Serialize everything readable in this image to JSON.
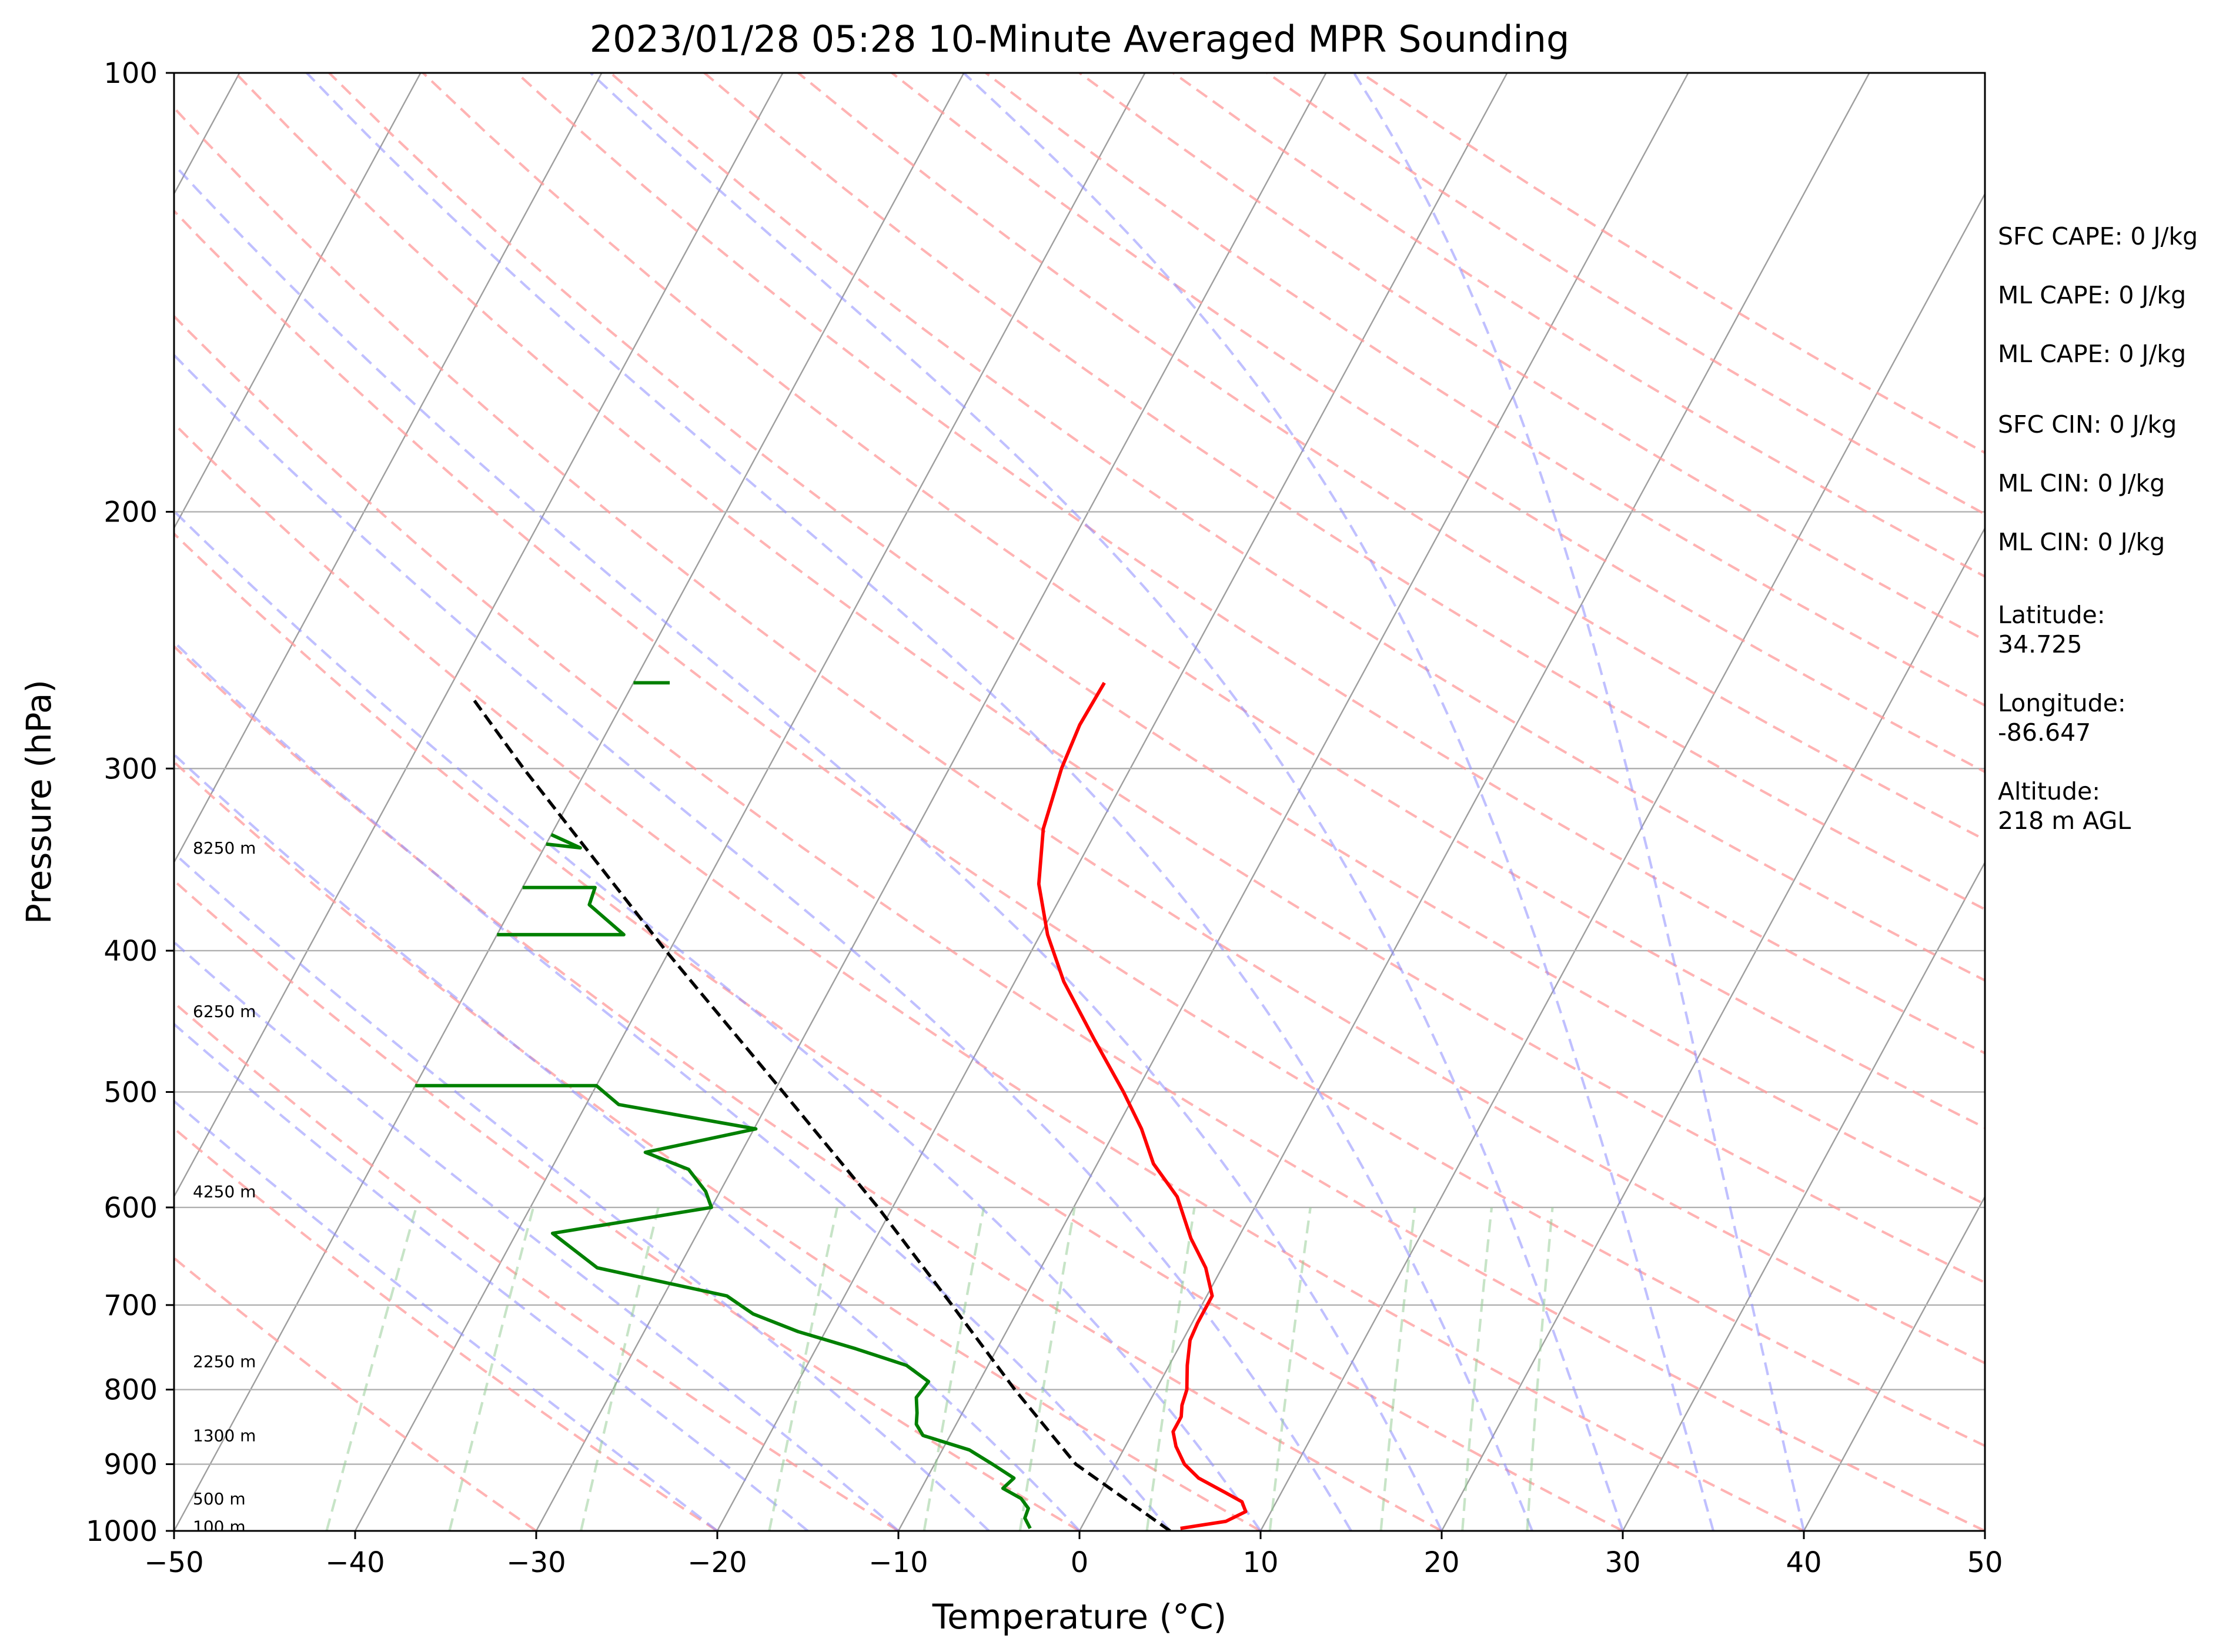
{
  "chart_data": {
    "type": "line",
    "title": "2023/01/28 05:28 10-Minute Averaged MPR Sounding",
    "xlabel": "Temperature (°C)",
    "ylabel": "Pressure (hPa)",
    "xlim": [
      -50,
      50
    ],
    "ylim": [
      1000,
      100
    ],
    "y_scale": "log",
    "grid": true,
    "x_ticks": [
      "−50",
      "−40",
      "−30",
      "−20",
      "−10",
      "0",
      "10",
      "20",
      "30",
      "40",
      "50"
    ],
    "y_ticks": [
      "100",
      "200",
      "300",
      "400",
      "500",
      "600",
      "700",
      "800",
      "900",
      "1000"
    ],
    "series": [
      {
        "role": "temperature",
        "color": "#ff0000",
        "points": [
          {
            "p": 996,
            "t": 5.5
          },
          {
            "p": 985,
            "t": 7.8
          },
          {
            "p": 970,
            "t": 8.6
          },
          {
            "p": 955,
            "t": 8.1
          },
          {
            "p": 940,
            "t": 6.8
          },
          {
            "p": 920,
            "t": 5.0
          },
          {
            "p": 900,
            "t": 3.8
          },
          {
            "p": 875,
            "t": 2.8
          },
          {
            "p": 855,
            "t": 2.2
          },
          {
            "p": 835,
            "t": 2.2
          },
          {
            "p": 820,
            "t": 1.9
          },
          {
            "p": 800,
            "t": 1.7
          },
          {
            "p": 770,
            "t": 1.0
          },
          {
            "p": 740,
            "t": 0.4
          },
          {
            "p": 720,
            "t": 0.3
          },
          {
            "p": 690,
            "t": 0.3
          },
          {
            "p": 660,
            "t": -0.9
          },
          {
            "p": 630,
            "t": -2.6
          },
          {
            "p": 590,
            "t": -4.6
          },
          {
            "p": 560,
            "t": -6.9
          },
          {
            "p": 530,
            "t": -8.6
          },
          {
            "p": 500,
            "t": -10.7
          },
          {
            "p": 460,
            "t": -13.9
          },
          {
            "p": 420,
            "t": -17.3
          },
          {
            "p": 390,
            "t": -19.6
          },
          {
            "p": 360,
            "t": -21.6
          },
          {
            "p": 330,
            "t": -23.0
          },
          {
            "p": 300,
            "t": -23.8
          },
          {
            "p": 280,
            "t": -24.1
          },
          {
            "p": 262,
            "t": -24.0
          }
        ]
      },
      {
        "role": "dewpoint",
        "color": "#008000",
        "points": [
          {
            "p": 996,
            "t": -2.8
          },
          {
            "p": 980,
            "t": -3.4
          },
          {
            "p": 965,
            "t": -3.5
          },
          {
            "p": 950,
            "t": -4.2
          },
          {
            "p": 935,
            "t": -5.5
          },
          {
            "p": 920,
            "t": -5.2
          },
          {
            "p": 900,
            "t": -6.8
          },
          {
            "p": 880,
            "t": -8.5
          },
          {
            "p": 860,
            "t": -11.5
          },
          {
            "p": 845,
            "t": -12.2
          },
          {
            "p": 830,
            "t": -12.5
          },
          {
            "p": 810,
            "t": -13.0
          },
          {
            "p": 790,
            "t": -12.8
          },
          {
            "p": 770,
            "t": -14.5
          },
          {
            "p": 750,
            "t": -17.8
          },
          {
            "p": 730,
            "t": -21.5
          },
          {
            "p": 710,
            "t": -24.5
          },
          {
            "p": 690,
            "t": -26.5
          },
          {
            "p": 660,
            "t": -34.5
          },
          {
            "p": 625,
            "t": -38.0
          },
          {
            "p": 600,
            "t": -30.0
          },
          {
            "p": 585,
            "t": -30.8
          },
          {
            "p": 565,
            "t": -32.4
          },
          {
            "p": 550,
            "t": -35.3
          },
          {
            "p": 530,
            "t": -29.9
          },
          {
            "p": 510,
            "t": -38.2
          },
          {
            "p": 495,
            "t": -40.0
          },
          {
            "p": 495,
            "t": -50.0
          }
        ],
        "upper_segments": [
          [
            {
              "p": 390,
              "t": -50.0
            },
            {
              "p": 390,
              "t": -43.0
            },
            {
              "p": 372,
              "t": -45.8
            },
            {
              "p": 362,
              "t": -46.0
            },
            {
              "p": 362,
              "t": -50.0
            }
          ],
          [
            {
              "p": 338,
              "t": -50.0
            },
            {
              "p": 340,
              "t": -48.0
            },
            {
              "p": 333,
              "t": -50.0
            }
          ],
          [
            {
              "p": 262,
              "t": -50.0
            },
            {
              "p": 262,
              "t": -48.0
            }
          ]
        ]
      },
      {
        "role": "parcel",
        "color": "#000000",
        "points": [
          {
            "p": 1000,
            "t": 5.0
          },
          {
            "p": 900,
            "t": -2.2
          },
          {
            "p": 800,
            "t": -7.8
          },
          {
            "p": 700,
            "t": -13.8
          },
          {
            "p": 600,
            "t": -20.8
          },
          {
            "p": 500,
            "t": -29.5
          },
          {
            "p": 400,
            "t": -40.2
          },
          {
            "p": 300,
            "t": -53.5
          },
          {
            "p": 268,
            "t": -58.5
          }
        ]
      }
    ],
    "height_labels": [
      {
        "p": 340,
        "label": "8250 m"
      },
      {
        "p": 440,
        "label": "6250 m"
      },
      {
        "p": 585,
        "label": "4250 m"
      },
      {
        "p": 765,
        "label": "2250 m"
      },
      {
        "p": 860,
        "label": "1300 m"
      },
      {
        "p": 950,
        "label": "500 m"
      },
      {
        "p": 993,
        "label": "100 m"
      }
    ],
    "side_text": [
      "SFC CAPE: 0 J/kg",
      "ML CAPE: 0 J/kg",
      "ML CAPE: 0 J/kg",
      "SFC CIN: 0 J/kg",
      "ML CIN: 0 J/kg",
      "ML CIN: 0 J/kg",
      "Latitude:",
      "34.725",
      "Longitude:",
      "-86.647",
      "Altitude:",
      "218 m AGL"
    ],
    "colors": {
      "isotherm": "#9e9e9e",
      "isobar": "#b0b0b0",
      "dry_adiabat": "#ff9999",
      "moist_adiabat": "#8c8cff",
      "mixing_ratio": "#8fc98f"
    }
  }
}
